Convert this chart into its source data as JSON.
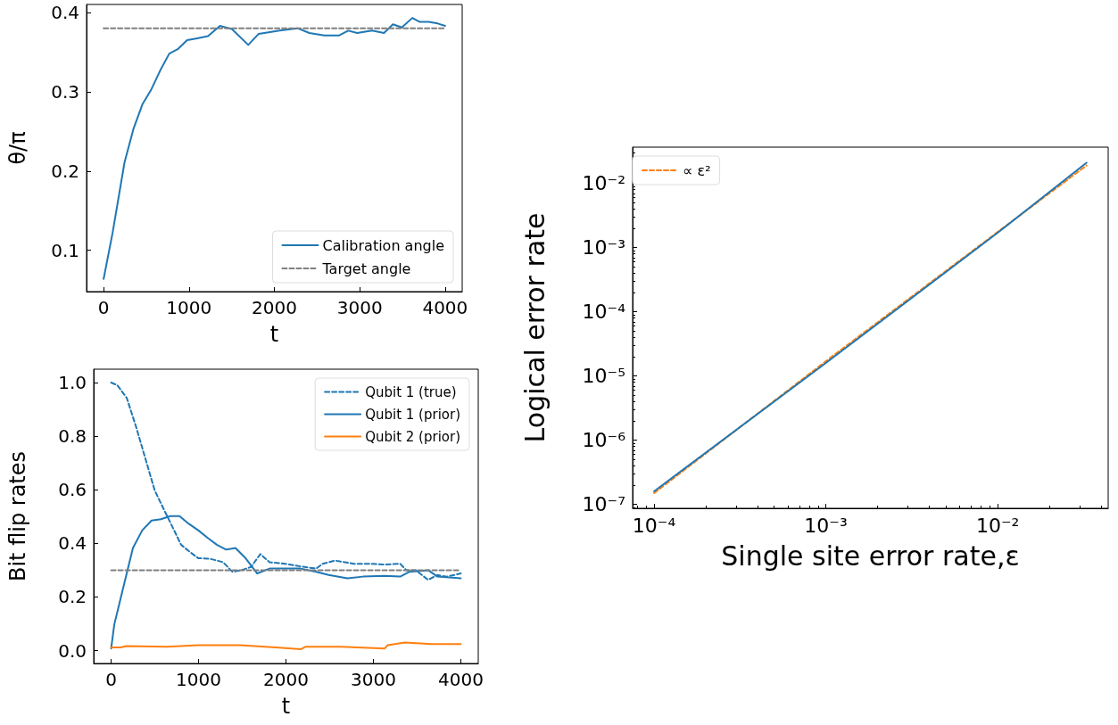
{
  "chart_data": [
    {
      "type": "line",
      "xlabel": "t",
      "ylabel": "θ/π",
      "xlim": [
        -200,
        4200
      ],
      "ylim": [
        0.048,
        0.41
      ],
      "xticks": [
        0,
        1000,
        2000,
        3000,
        4000
      ],
      "yticks": [
        0.1,
        0.2,
        0.3,
        0.4
      ],
      "legend": "bottom right",
      "series": [
        {
          "name": "Calibration angle",
          "color": "#1f77b4",
          "x": [
            0,
            105,
            245,
            349,
            454,
            559,
            664,
            769,
            873,
            978,
            1083,
            1223,
            1363,
            1502,
            1694,
            1817,
            2061,
            2271,
            2410,
            2585,
            2760,
            2865,
            2969,
            3144,
            3284,
            3389,
            3493,
            3616,
            3703,
            3808,
            3913,
            4000
          ],
          "values": [
            0.064,
            0.122,
            0.211,
            0.253,
            0.284,
            0.303,
            0.327,
            0.348,
            0.354,
            0.365,
            0.367,
            0.37,
            0.383,
            0.379,
            0.359,
            0.373,
            0.377,
            0.38,
            0.374,
            0.371,
            0.371,
            0.377,
            0.374,
            0.377,
            0.374,
            0.385,
            0.381,
            0.393,
            0.388,
            0.388,
            0.386,
            0.383
          ]
        },
        {
          "name": "Target angle",
          "color": "#7f7f7f",
          "line_style": "dashed",
          "x": [
            0,
            4000
          ],
          "values": [
            0.38,
            0.38
          ]
        }
      ]
    },
    {
      "type": "line",
      "xlabel": "t",
      "ylabel": "Bit flip rates",
      "xlim": [
        -200,
        4200
      ],
      "ylim": [
        -0.048,
        1.05
      ],
      "xticks": [
        0,
        1000,
        2000,
        3000,
        4000
      ],
      "yticks": [
        {
          "value": 0,
          "label": "0.0"
        },
        0.2,
        0.4,
        0.6,
        0.8,
        {
          "value": 1,
          "label": "1.0"
        }
      ],
      "legend": "top right",
      "series": [
        {
          "name": "Qubit 1 (true)",
          "color": "#1f77b4",
          "line_style": "dashed",
          "x": [
            0,
            71,
            178,
            284,
            391,
            498,
            604,
            711,
            800,
            889,
            996,
            1138,
            1280,
            1387,
            1493,
            1600,
            1707,
            1813,
            1991,
            2169,
            2347,
            2418,
            2560,
            2773,
            2951,
            3129,
            3307,
            3378,
            3484,
            3627,
            3733,
            3840,
            4000
          ],
          "values": [
            1.0,
            0.99,
            0.943,
            0.836,
            0.717,
            0.598,
            0.526,
            0.455,
            0.395,
            0.371,
            0.345,
            0.342,
            0.33,
            0.294,
            0.3,
            0.312,
            0.36,
            0.33,
            0.324,
            0.314,
            0.306,
            0.324,
            0.336,
            0.324,
            0.324,
            0.321,
            0.324,
            0.3,
            0.3,
            0.264,
            0.282,
            0.276,
            0.288
          ]
        },
        {
          "name": "Qubit 1 (prior)",
          "color": "#1f77b4",
          "x": [
            0,
            36,
            107,
            178,
            249,
            356,
            462,
            569,
            676,
            782,
            889,
            996,
            1102,
            1209,
            1316,
            1422,
            1529,
            1671,
            1813,
            1991,
            2169,
            2347,
            2489,
            2702,
            2880,
            3129,
            3307,
            3413,
            3627,
            3733,
            4000
          ],
          "values": [
            0.008,
            0.098,
            0.193,
            0.288,
            0.383,
            0.449,
            0.485,
            0.49,
            0.502,
            0.502,
            0.473,
            0.449,
            0.421,
            0.395,
            0.377,
            0.383,
            0.348,
            0.288,
            0.306,
            0.306,
            0.306,
            0.294,
            0.282,
            0.27,
            0.276,
            0.279,
            0.276,
            0.294,
            0.3,
            0.276,
            0.27
          ]
        },
        {
          "name": "Qubit 2 (prior)",
          "color": "#ff7f0e",
          "x": [
            0,
            107,
            178,
            640,
            996,
            1476,
            1884,
            2169,
            2222,
            2631,
            3129,
            3164,
            3360,
            3662,
            4000
          ],
          "values": [
            0.012,
            0.012,
            0.017,
            0.014,
            0.02,
            0.02,
            0.012,
            0.005,
            0.014,
            0.014,
            0.008,
            0.02,
            0.03,
            0.024,
            0.024
          ]
        },
        {
          "color": "#7f7f7f",
          "line_style": "dashed",
          "x": [
            0,
            4000
          ],
          "values": [
            0.3,
            0.3
          ]
        }
      ]
    },
    {
      "type": "line",
      "xlabel": "Single site error rate,ε",
      "ylabel": "Logical error rate",
      "log": "xy",
      "xlim": [
        7.5e-05,
        0.044
      ],
      "ylim": [
        8.7e-08,
        0.0367
      ],
      "xticks": [
        {
          "value": 0.0001,
          "label": "10⁻⁴"
        },
        {
          "value": 0.001,
          "label": "10⁻³"
        },
        {
          "value": 0.01,
          "label": "10⁻²"
        }
      ],
      "yticks": [
        {
          "value": 1e-07,
          "label": "10⁻⁷"
        },
        {
          "value": 1e-06,
          "label": "10⁻⁶"
        },
        {
          "value": 1e-05,
          "label": "10⁻⁵"
        },
        {
          "value": 0.0001,
          "label": "10⁻⁴"
        },
        {
          "value": 0.001,
          "label": "10⁻³"
        },
        {
          "value": 0.01,
          "label": "10⁻²"
        }
      ],
      "legend": "top left",
      "series": [
        {
          "name": "∝ ε²",
          "color": "#ff7f0e",
          "line_style": "dashed",
          "x": [
            0.0001,
            0.001,
            0.01,
            0.0329
          ],
          "values": [
            1.5e-07,
            1.7e-05,
            0.00175,
            0.019
          ]
        },
        {
          "color": "#1f77b4",
          "x": [
            0.0001,
            0.001,
            0.01,
            0.0329
          ],
          "values": [
            1.6e-07,
            1.6e-05,
            0.0017,
            0.021
          ]
        }
      ]
    }
  ]
}
